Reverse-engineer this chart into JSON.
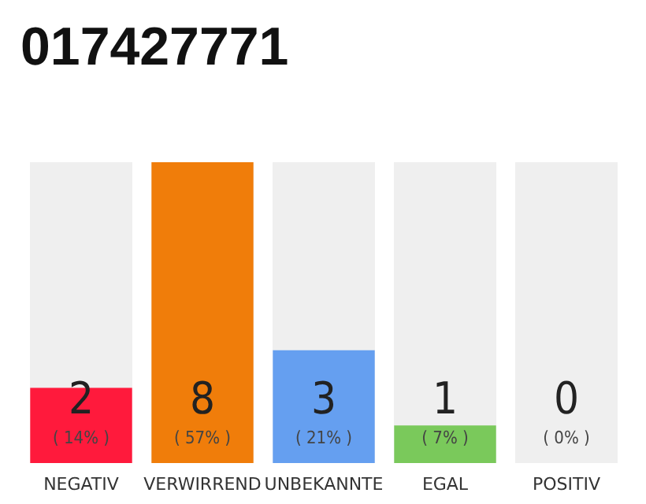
{
  "chart_data": {
    "type": "bar",
    "title": "017427771",
    "categories": [
      "NEGATIV",
      "VERWIRREND",
      "UNBEKANNTE",
      "EGAL",
      "POSITIV"
    ],
    "values": [
      2,
      8,
      3,
      1,
      0
    ],
    "colors": [
      "#ff1a3c",
      "#f07d0a",
      "#659ff0",
      "#7ac95b",
      "#2aa84a"
    ],
    "value_labels": [
      "2\n( 14% )",
      "8\n( 57% )",
      "3\n( 21% )",
      "1\n( 7% )",
      "0\n( 0% )"
    ],
    "ylim": [
      0,
      8
    ],
    "tick_labels": "x",
    "grid": false
  }
}
